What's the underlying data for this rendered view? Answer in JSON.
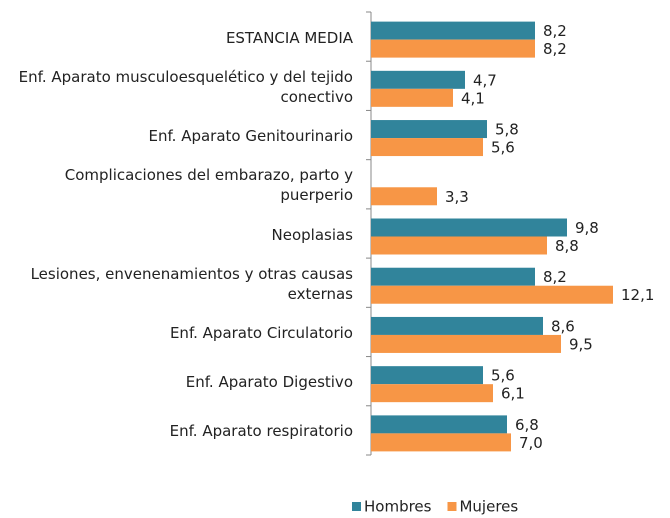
{
  "chart_data": {
    "type": "bar",
    "orientation": "horizontal",
    "categories": [
      "ESTANCIA MEDIA",
      "Enf. Aparato musculoesquelético y del tejido conectivo",
      "Enf. Aparato Genitourinario",
      "Complicaciones del embarazo, parto y puerperio",
      "Neoplasias",
      "Lesiones, envenenamientos y otras causas externas",
      "Enf. Aparato Circulatorio",
      "Enf. Aparato Digestivo",
      "Enf. Aparato respiratorio"
    ],
    "series": [
      {
        "name": "Hombres",
        "color": "#31849b",
        "values": [
          8.2,
          4.7,
          5.8,
          null,
          9.8,
          8.2,
          8.6,
          5.6,
          6.8
        ],
        "value_labels": [
          "8,2",
          "4,7",
          "5,8",
          null,
          "9,8",
          "8,2",
          "8,6",
          "5,6",
          "6,8"
        ]
      },
      {
        "name": "Mujeres",
        "color": "#f79646",
        "values": [
          8.2,
          4.1,
          5.6,
          3.3,
          8.8,
          12.1,
          9.5,
          6.1,
          7.0
        ],
        "value_labels": [
          "8,2",
          "4,1",
          "5,6",
          "3,3",
          "8,8",
          "12,1",
          "9,5",
          "6,1",
          "7,0"
        ]
      }
    ],
    "xlim": [
      0,
      15
    ],
    "legend": "bottom"
  }
}
